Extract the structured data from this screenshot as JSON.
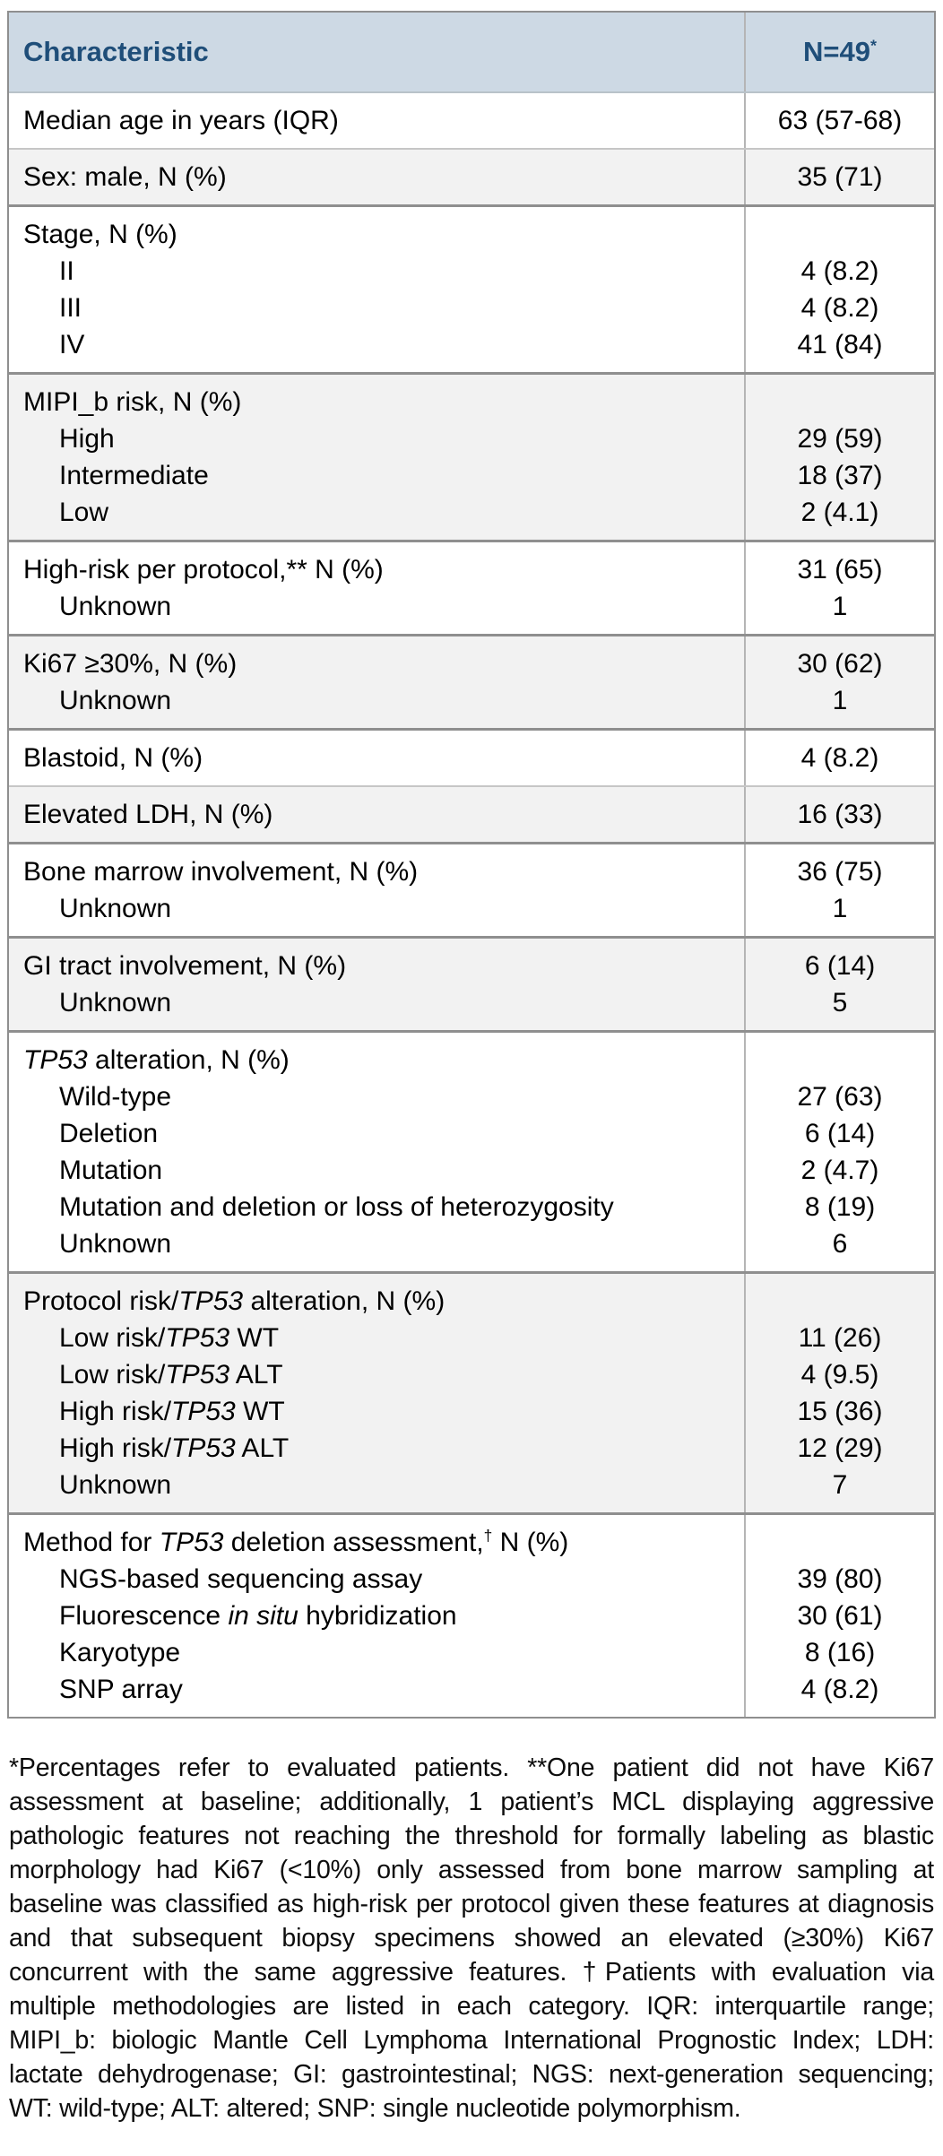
{
  "colors": {
    "header_bg": "#cdd9e4",
    "header_text": "#1f4e79",
    "row_alt_bg": "#f2f2f2",
    "border_dark": "#8f8f8f",
    "border_light": "#c6c6c6",
    "divider": "#b5b5b5"
  },
  "table": {
    "header": {
      "characteristic": "Characteristic",
      "n": "N=49",
      "n_sup": "*"
    },
    "groups": [
      {
        "shade": "plain",
        "rows": [
          {
            "label": [
              {
                "t": "Median age in years (IQR)"
              }
            ],
            "value": "63 (57-68)"
          }
        ]
      },
      {
        "shade": "gray",
        "rows": [
          {
            "label": [
              {
                "t": "Sex: male, N (%)"
              }
            ],
            "value": "35 (71)"
          }
        ]
      },
      {
        "shade": "plain",
        "rows": [
          {
            "label": [
              {
                "t": "Stage, N (%)"
              }
            ],
            "value": ""
          },
          {
            "label": [
              {
                "t": "II"
              }
            ],
            "indent": true,
            "value": "4 (8.2)"
          },
          {
            "label": [
              {
                "t": "III"
              }
            ],
            "indent": true,
            "value": "4 (8.2)"
          },
          {
            "label": [
              {
                "t": "IV"
              }
            ],
            "indent": true,
            "value": "41 (84)"
          }
        ]
      },
      {
        "shade": "gray",
        "rows": [
          {
            "label": [
              {
                "t": "MIPI_b risk, N (%)"
              }
            ],
            "value": ""
          },
          {
            "label": [
              {
                "t": "High"
              }
            ],
            "indent": true,
            "value": "29 (59)"
          },
          {
            "label": [
              {
                "t": "Intermediate"
              }
            ],
            "indent": true,
            "value": "18 (37)"
          },
          {
            "label": [
              {
                "t": "Low"
              }
            ],
            "indent": true,
            "value": "2 (4.1)"
          }
        ]
      },
      {
        "shade": "plain",
        "rows": [
          {
            "label": [
              {
                "t": "High-risk per protocol,** N (%)"
              }
            ],
            "value": "31 (65)"
          },
          {
            "label": [
              {
                "t": "Unknown"
              }
            ],
            "indent": true,
            "value": "1"
          }
        ]
      },
      {
        "shade": "gray",
        "rows": [
          {
            "label": [
              {
                "t": "Ki67 ≥30%, N (%)"
              }
            ],
            "value": "30 (62)"
          },
          {
            "label": [
              {
                "t": "Unknown"
              }
            ],
            "indent": true,
            "value": "1"
          }
        ]
      },
      {
        "shade": "plain",
        "rows": [
          {
            "label": [
              {
                "t": "Blastoid, N (%)"
              }
            ],
            "value": "4 (8.2)"
          }
        ]
      },
      {
        "shade": "gray",
        "rows": [
          {
            "label": [
              {
                "t": "Elevated LDH, N (%)"
              }
            ],
            "value": "16 (33)"
          }
        ]
      },
      {
        "shade": "plain",
        "rows": [
          {
            "label": [
              {
                "t": "Bone marrow involvement, N (%)"
              }
            ],
            "value": "36 (75)"
          },
          {
            "label": [
              {
                "t": "Unknown"
              }
            ],
            "indent": true,
            "value": "1"
          }
        ]
      },
      {
        "shade": "gray",
        "rows": [
          {
            "label": [
              {
                "t": "GI tract involvement, N (%)"
              }
            ],
            "value": "6 (14)"
          },
          {
            "label": [
              {
                "t": "Unknown"
              }
            ],
            "indent": true,
            "value": "5"
          }
        ]
      },
      {
        "shade": "plain",
        "rows": [
          {
            "label": [
              {
                "t": "TP53",
                "i": true
              },
              {
                "t": " alteration, N (%)"
              }
            ],
            "value": ""
          },
          {
            "label": [
              {
                "t": "Wild-type"
              }
            ],
            "indent": true,
            "value": "27 (63)"
          },
          {
            "label": [
              {
                "t": "Deletion"
              }
            ],
            "indent": true,
            "value": "6 (14)"
          },
          {
            "label": [
              {
                "t": "Mutation"
              }
            ],
            "indent": true,
            "value": "2 (4.7)"
          },
          {
            "label": [
              {
                "t": "Mutation and deletion or loss of heterozygosity"
              }
            ],
            "indent": true,
            "value": "8 (19)"
          },
          {
            "label": [
              {
                "t": "Unknown"
              }
            ],
            "indent": true,
            "value": "6"
          }
        ]
      },
      {
        "shade": "gray",
        "rows": [
          {
            "label": [
              {
                "t": "Protocol risk/"
              },
              {
                "t": "TP53",
                "i": true
              },
              {
                "t": " alteration, N (%)"
              }
            ],
            "value": ""
          },
          {
            "label": [
              {
                "t": "Low risk/"
              },
              {
                "t": "TP53",
                "i": true
              },
              {
                "t": " WT"
              }
            ],
            "indent": true,
            "value": "11 (26)"
          },
          {
            "label": [
              {
                "t": "Low risk/"
              },
              {
                "t": "TP53",
                "i": true
              },
              {
                "t": " ALT"
              }
            ],
            "indent": true,
            "value": "4 (9.5)"
          },
          {
            "label": [
              {
                "t": "High risk/"
              },
              {
                "t": "TP53",
                "i": true
              },
              {
                "t": " WT"
              }
            ],
            "indent": true,
            "value": "15 (36)"
          },
          {
            "label": [
              {
                "t": "High risk/"
              },
              {
                "t": "TP53",
                "i": true
              },
              {
                "t": " ALT"
              }
            ],
            "indent": true,
            "value": "12 (29)"
          },
          {
            "label": [
              {
                "t": "Unknown"
              }
            ],
            "indent": true,
            "value": "7"
          }
        ]
      },
      {
        "shade": "plain",
        "rows": [
          {
            "label": [
              {
                "t": "Method for "
              },
              {
                "t": "TP53",
                "i": true
              },
              {
                "t": " deletion assessment,"
              },
              {
                "t": "†",
                "sup": true
              },
              {
                "t": " N (%)"
              }
            ],
            "value": ""
          },
          {
            "label": [
              {
                "t": "NGS-based sequencing assay"
              }
            ],
            "indent": true,
            "value": "39 (80)"
          },
          {
            "label": [
              {
                "t": "Fluorescence "
              },
              {
                "t": "in situ",
                "i": true
              },
              {
                "t": " hybridization"
              }
            ],
            "indent": true,
            "value": "30 (61)"
          },
          {
            "label": [
              {
                "t": "Karyotype"
              }
            ],
            "indent": true,
            "value": "8 (16)"
          },
          {
            "label": [
              {
                "t": "SNP array"
              }
            ],
            "indent": true,
            "value": "4 (8.2)"
          }
        ]
      }
    ]
  },
  "footnote": {
    "text": "*Percentages refer to evaluated patients. **One patient did not have Ki67 assessment at baseline; additionally, 1 patient’s MCL displaying aggressive pathologic features not reaching the threshold for formally labeling as blastic morphology had Ki67 (<10%) only assessed from bone marrow sampling at baseline was classified as high-risk per protocol given these features at diagnosis and that subsequent biopsy specimens showed an elevated (≥30%) Ki67 concurrent with the same aggressive features. †Patients with evaluation via multiple methodologies are listed in each category. IQR: interquartile range; MIPI_b: biologic Mantle Cell Lymphoma International Prognostic Index; LDH: lactate dehydrogenase; GI: gastrointestinal; NGS: next-generation sequencing; WT: wild-type; ALT: altered; SNP: single nucleotide polymorphism."
  }
}
